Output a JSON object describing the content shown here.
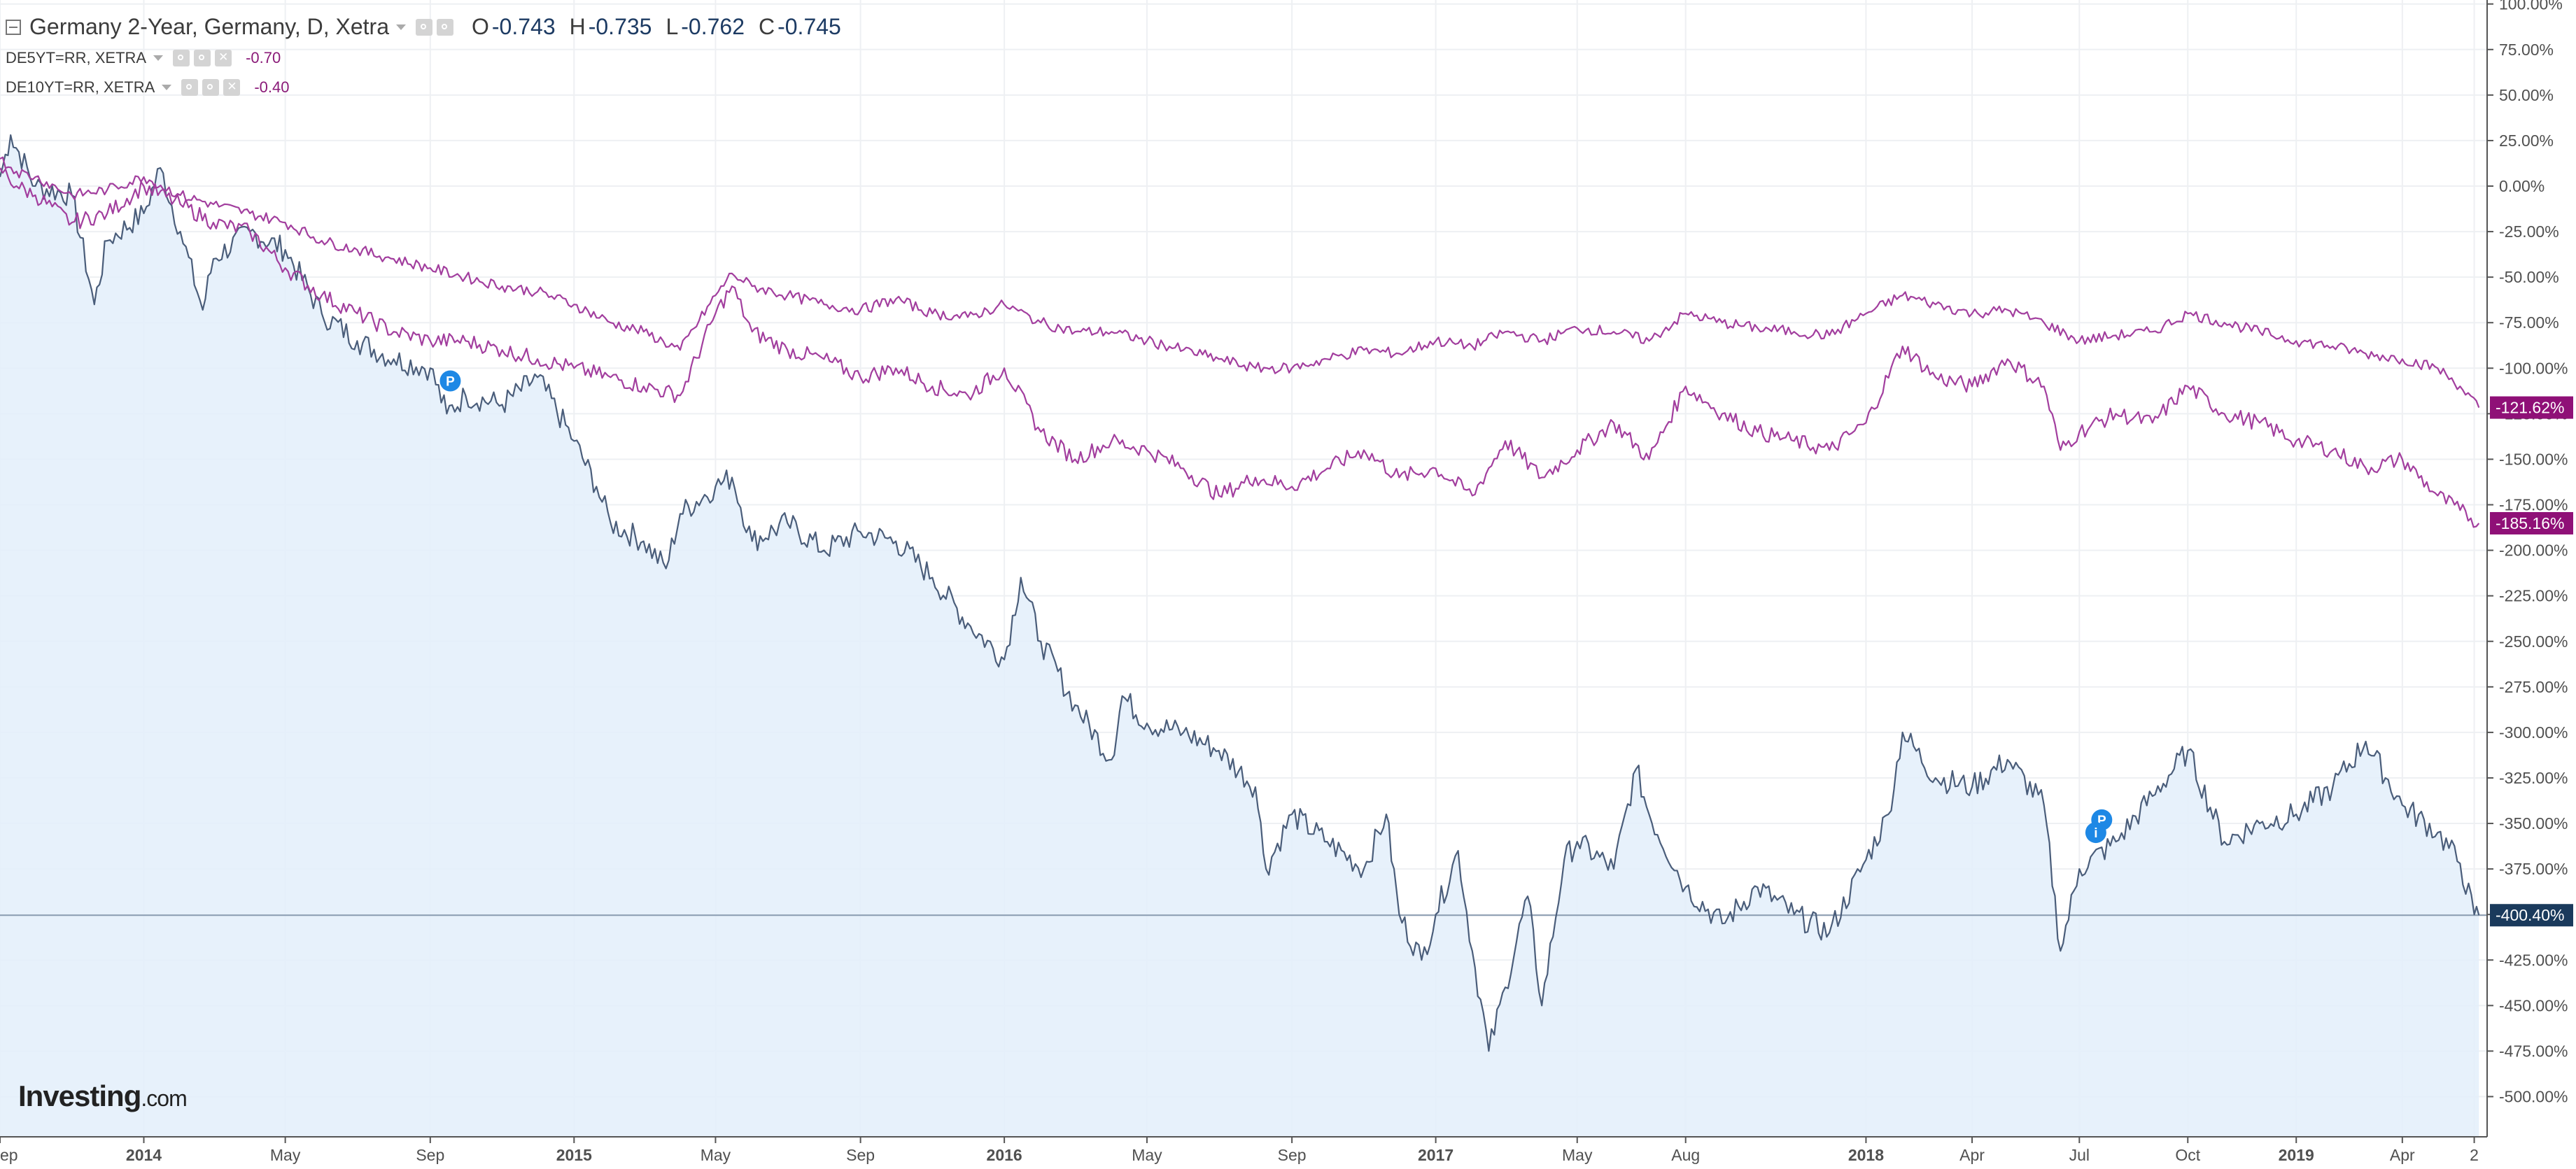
{
  "header": {
    "title": "Germany 2-Year, Germany, D, Xetra",
    "ohlc": [
      {
        "key": "O",
        "value": "-0.743"
      },
      {
        "key": "H",
        "value": "-0.735"
      },
      {
        "key": "L",
        "value": "-0.762"
      },
      {
        "key": "C",
        "value": "-0.745"
      }
    ],
    "overlays": [
      {
        "name": "DE5YT=RR, XETRA",
        "value": "-0.70"
      },
      {
        "name": "DE10YT=RR, XETRA",
        "value": "-0.40"
      }
    ]
  },
  "logo": {
    "brand": "Investing",
    "suffix": ".com"
  },
  "colors": {
    "main_line": "#4a5d7a",
    "main_fill": "#e3eefa",
    "overlay": "#a23e9e",
    "main_badge": "#1a3a5c",
    "overlay_badge": "#8f1077",
    "grid": "#eef0f3",
    "axis_text": "#505050",
    "marker": "#1e88e5"
  },
  "chart_data": {
    "type": "line",
    "y_unit": "percent change",
    "ylim": [
      -512,
      100
    ],
    "y_ticks": [
      100,
      75,
      50,
      25,
      0,
      -25,
      -50,
      -75,
      -100,
      -125,
      -150,
      -175,
      -200,
      -225,
      -250,
      -275,
      -300,
      -325,
      -350,
      -375,
      -400,
      -425,
      -450,
      -475,
      -500
    ],
    "y_tick_labels": [
      "100.00%",
      "75.00%",
      "50.00%",
      "25.00%",
      "0.00%",
      "-25.00%",
      "-50.00%",
      "-75.00%",
      "-100.00%",
      "-125.00%",
      "-150.00%",
      "-175.00%",
      "-200.00%",
      "-225.00%",
      "-250.00%",
      "-275.00%",
      "-300.00%",
      "-325.00%",
      "-350.00%",
      "-375.00%",
      "-400.00%",
      "-425.00%",
      "-450.00%",
      "-475.00%",
      "-500.00%"
    ],
    "x_range": [
      "2013-09",
      "2019-06"
    ],
    "x_ticks": [
      {
        "date": "2013-09",
        "label": "ep"
      },
      {
        "date": "2014-01",
        "label": "2014",
        "bold": true
      },
      {
        "date": "2014-05",
        "label": "May"
      },
      {
        "date": "2014-09",
        "label": "Sep"
      },
      {
        "date": "2015-01",
        "label": "2015",
        "bold": true
      },
      {
        "date": "2015-05",
        "label": "May"
      },
      {
        "date": "2015-09",
        "label": "Sep"
      },
      {
        "date": "2016-01",
        "label": "2016",
        "bold": true
      },
      {
        "date": "2016-05",
        "label": "May"
      },
      {
        "date": "2016-09",
        "label": "Sep"
      },
      {
        "date": "2017-01",
        "label": "2017",
        "bold": true
      },
      {
        "date": "2017-05",
        "label": "May"
      },
      {
        "date": "2017-08",
        "label": "Aug"
      },
      {
        "date": "2018-01",
        "label": "2018",
        "bold": true
      },
      {
        "date": "2018-04",
        "label": "Apr"
      },
      {
        "date": "2018-07",
        "label": "Jul"
      },
      {
        "date": "2018-10",
        "label": "Oct"
      },
      {
        "date": "2019-01",
        "label": "2019",
        "bold": true
      },
      {
        "date": "2019-04",
        "label": "Apr"
      },
      {
        "date": "2019-06",
        "label": "2"
      }
    ],
    "grid": true,
    "area_under_first_series": true,
    "reference_line_y": -400.4,
    "series": [
      {
        "name": "Germany 2-Year, Germany, D, Xetra",
        "end_label": "-400.40%",
        "points": [
          [
            "2013-09",
            5
          ],
          [
            "2013-09-10",
            28
          ],
          [
            "2013-10",
            0
          ],
          [
            "2013-11",
            -5
          ],
          [
            "2013-11-20",
            -65
          ],
          [
            "2013-12",
            -30
          ],
          [
            "2014-01",
            -15
          ],
          [
            "2014-01-15",
            10
          ],
          [
            "2014-02",
            -25
          ],
          [
            "2014-02-20",
            -68
          ],
          [
            "2014-03",
            -40
          ],
          [
            "2014-04",
            -25
          ],
          [
            "2014-05",
            -35
          ],
          [
            "2014-06",
            -70
          ],
          [
            "2014-07",
            -85
          ],
          [
            "2014-08",
            -95
          ],
          [
            "2014-09",
            -100
          ],
          [
            "2014-09-15",
            -125
          ],
          [
            "2014-10",
            -115
          ],
          [
            "2014-11",
            -120
          ],
          [
            "2014-12",
            -105
          ],
          [
            "2015-01",
            -140
          ],
          [
            "2015-01-20",
            -165
          ],
          [
            "2015-02",
            -185
          ],
          [
            "2015-03",
            -195
          ],
          [
            "2015-03-20",
            -210
          ],
          [
            "2015-04",
            -180
          ],
          [
            "2015-05",
            -165
          ],
          [
            "2015-05-15",
            -160
          ],
          [
            "2015-06",
            -195
          ],
          [
            "2015-07",
            -185
          ],
          [
            "2015-08",
            -200
          ],
          [
            "2015-09",
            -190
          ],
          [
            "2015-10",
            -195
          ],
          [
            "2015-11",
            -215
          ],
          [
            "2015-12",
            -240
          ],
          [
            "2016-01",
            -260
          ],
          [
            "2016-01-15",
            -215
          ],
          [
            "2016-02",
            -250
          ],
          [
            "2016-03",
            -285
          ],
          [
            "2016-04",
            -315
          ],
          [
            "2016-04-10",
            -280
          ],
          [
            "2016-05",
            -295
          ],
          [
            "2016-06",
            -300
          ],
          [
            "2016-07",
            -310
          ],
          [
            "2016-08",
            -330
          ],
          [
            "2016-08-10",
            -375
          ],
          [
            "2016-09",
            -345
          ],
          [
            "2016-10",
            -360
          ],
          [
            "2016-11",
            -375
          ],
          [
            "2016-11-20",
            -345
          ],
          [
            "2016-12",
            -400
          ],
          [
            "2016-12-20",
            -425
          ],
          [
            "2017-01",
            -400
          ],
          [
            "2017-01-20",
            -365
          ],
          [
            "2017-02",
            -420
          ],
          [
            "2017-02-15",
            -475
          ],
          [
            "2017-03",
            -440
          ],
          [
            "2017-03-20",
            -390
          ],
          [
            "2017-04",
            -450
          ],
          [
            "2017-04-20",
            -370
          ],
          [
            "2017-05",
            -360
          ],
          [
            "2017-06",
            -375
          ],
          [
            "2017-06-20",
            -320
          ],
          [
            "2017-07",
            -345
          ],
          [
            "2017-08",
            -385
          ],
          [
            "2017-09",
            -405
          ],
          [
            "2017-10",
            -385
          ],
          [
            "2017-11",
            -400
          ],
          [
            "2017-12",
            -410
          ],
          [
            "2018-01",
            -370
          ],
          [
            "2018-01-20",
            -345
          ],
          [
            "2018-02",
            -300
          ],
          [
            "2018-03",
            -325
          ],
          [
            "2018-04",
            -330
          ],
          [
            "2018-05",
            -315
          ],
          [
            "2018-06",
            -340
          ],
          [
            "2018-06-15",
            -420
          ],
          [
            "2018-07",
            -375
          ],
          [
            "2018-08",
            -360
          ],
          [
            "2018-09",
            -335
          ],
          [
            "2018-10",
            -310
          ],
          [
            "2018-11",
            -360
          ],
          [
            "2018-12",
            -350
          ],
          [
            "2019-01",
            -345
          ],
          [
            "2019-02",
            -330
          ],
          [
            "2019-03",
            -305
          ],
          [
            "2019-04",
            -340
          ],
          [
            "2019-05",
            -355
          ],
          [
            "2019-05-20",
            -372
          ],
          [
            "2019-06-01",
            -400
          ],
          [
            "2019-06-05",
            -400.4
          ]
        ]
      },
      {
        "name": "DE5YT=RR, XETRA",
        "end_label": "-185.16%",
        "points": [
          [
            "2013-09",
            10
          ],
          [
            "2013-09-15",
            0
          ],
          [
            "2013-10",
            -5
          ],
          [
            "2013-11",
            -20
          ],
          [
            "2013-12",
            -15
          ],
          [
            "2014-01",
            0
          ],
          [
            "2014-02",
            -10
          ],
          [
            "2014-03",
            -20
          ],
          [
            "2014-04",
            -25
          ],
          [
            "2014-05",
            -45
          ],
          [
            "2014-06",
            -60
          ],
          [
            "2014-07",
            -70
          ],
          [
            "2014-08",
            -80
          ],
          [
            "2014-09",
            -85
          ],
          [
            "2014-10",
            -85
          ],
          [
            "2014-11",
            -90
          ],
          [
            "2014-12",
            -95
          ],
          [
            "2015-01",
            -100
          ],
          [
            "2015-02",
            -105
          ],
          [
            "2015-03",
            -110
          ],
          [
            "2015-04",
            -115
          ],
          [
            "2015-05",
            -70
          ],
          [
            "2015-05-15",
            -55
          ],
          [
            "2015-06",
            -80
          ],
          [
            "2015-07",
            -90
          ],
          [
            "2015-08",
            -95
          ],
          [
            "2015-09",
            -105
          ],
          [
            "2015-10",
            -100
          ],
          [
            "2015-11",
            -110
          ],
          [
            "2015-12",
            -115
          ],
          [
            "2016-01",
            -100
          ],
          [
            "2016-02",
            -135
          ],
          [
            "2016-03",
            -150
          ],
          [
            "2016-04",
            -140
          ],
          [
            "2016-05",
            -145
          ],
          [
            "2016-06",
            -155
          ],
          [
            "2016-07",
            -170
          ],
          [
            "2016-08",
            -160
          ],
          [
            "2016-09",
            -165
          ],
          [
            "2016-10",
            -155
          ],
          [
            "2016-11",
            -145
          ],
          [
            "2016-12",
            -160
          ],
          [
            "2017-01",
            -155
          ],
          [
            "2017-02",
            -170
          ],
          [
            "2017-03",
            -140
          ],
          [
            "2017-04",
            -160
          ],
          [
            "2017-05",
            -145
          ],
          [
            "2017-06",
            -130
          ],
          [
            "2017-07",
            -150
          ],
          [
            "2017-08",
            -110
          ],
          [
            "2017-09",
            -125
          ],
          [
            "2017-10",
            -135
          ],
          [
            "2017-11",
            -140
          ],
          [
            "2017-12",
            -145
          ],
          [
            "2018-01",
            -130
          ],
          [
            "2018-02",
            -88
          ],
          [
            "2018-03",
            -105
          ],
          [
            "2018-04",
            -110
          ],
          [
            "2018-05",
            -95
          ],
          [
            "2018-06",
            -110
          ],
          [
            "2018-06-15",
            -145
          ],
          [
            "2018-07",
            -135
          ],
          [
            "2018-08",
            -125
          ],
          [
            "2018-09",
            -130
          ],
          [
            "2018-10",
            -110
          ],
          [
            "2018-11",
            -125
          ],
          [
            "2018-12",
            -130
          ],
          [
            "2019-01",
            -140
          ],
          [
            "2019-02",
            -145
          ],
          [
            "2019-03",
            -155
          ],
          [
            "2019-04",
            -150
          ],
          [
            "2019-05",
            -170
          ],
          [
            "2019-05-20",
            -178
          ],
          [
            "2019-06-05",
            -185.16
          ]
        ]
      },
      {
        "name": "DE10YT=RR, XETRA",
        "end_label": "-121.62%",
        "points": [
          [
            "2013-09",
            15
          ],
          [
            "2013-09-15",
            8
          ],
          [
            "2013-10",
            5
          ],
          [
            "2013-11",
            -5
          ],
          [
            "2013-12",
            -2
          ],
          [
            "2014-01",
            5
          ],
          [
            "2014-02",
            -5
          ],
          [
            "2014-03",
            -10
          ],
          [
            "2014-04",
            -15
          ],
          [
            "2014-05",
            -20
          ],
          [
            "2014-06",
            -30
          ],
          [
            "2014-07",
            -35
          ],
          [
            "2014-08",
            -40
          ],
          [
            "2014-09",
            -45
          ],
          [
            "2014-10",
            -50
          ],
          [
            "2014-11",
            -55
          ],
          [
            "2014-12",
            -58
          ],
          [
            "2015-01",
            -65
          ],
          [
            "2015-02",
            -75
          ],
          [
            "2015-03",
            -80
          ],
          [
            "2015-04",
            -90
          ],
          [
            "2015-05",
            -60
          ],
          [
            "2015-05-15",
            -48
          ],
          [
            "2015-06",
            -55
          ],
          [
            "2015-07",
            -60
          ],
          [
            "2015-08",
            -65
          ],
          [
            "2015-09",
            -68
          ],
          [
            "2015-10",
            -62
          ],
          [
            "2015-11",
            -70
          ],
          [
            "2015-12",
            -72
          ],
          [
            "2016-01",
            -65
          ],
          [
            "2016-02",
            -75
          ],
          [
            "2016-03",
            -80
          ],
          [
            "2016-04",
            -80
          ],
          [
            "2016-05",
            -85
          ],
          [
            "2016-06",
            -90
          ],
          [
            "2016-07",
            -95
          ],
          [
            "2016-08",
            -100
          ],
          [
            "2016-09",
            -100
          ],
          [
            "2016-10",
            -95
          ],
          [
            "2016-11",
            -90
          ],
          [
            "2016-12",
            -92
          ],
          [
            "2017-01",
            -85
          ],
          [
            "2017-02",
            -88
          ],
          [
            "2017-03",
            -80
          ],
          [
            "2017-04",
            -85
          ],
          [
            "2017-05",
            -78
          ],
          [
            "2017-06",
            -80
          ],
          [
            "2017-07",
            -85
          ],
          [
            "2017-08",
            -70
          ],
          [
            "2017-09",
            -75
          ],
          [
            "2017-10",
            -78
          ],
          [
            "2017-11",
            -80
          ],
          [
            "2017-12",
            -82
          ],
          [
            "2018-01",
            -70
          ],
          [
            "2018-02",
            -60
          ],
          [
            "2018-03",
            -65
          ],
          [
            "2018-04",
            -70
          ],
          [
            "2018-05",
            -68
          ],
          [
            "2018-06",
            -75
          ],
          [
            "2018-07",
            -85
          ],
          [
            "2018-08",
            -82
          ],
          [
            "2018-09",
            -80
          ],
          [
            "2018-10",
            -70
          ],
          [
            "2018-11",
            -75
          ],
          [
            "2018-12",
            -80
          ],
          [
            "2019-01",
            -85
          ],
          [
            "2019-02",
            -88
          ],
          [
            "2019-03",
            -92
          ],
          [
            "2019-04",
            -95
          ],
          [
            "2019-05",
            -100
          ],
          [
            "2019-05-20",
            -110
          ],
          [
            "2019-06-05",
            -121.62
          ]
        ]
      }
    ],
    "markers": [
      {
        "date": "2014-09-18",
        "value": -107,
        "label": "P"
      },
      {
        "date": "2018-07-20",
        "value": -348,
        "label": "P"
      },
      {
        "date": "2018-07-15",
        "value": -355,
        "label": "i"
      }
    ]
  }
}
